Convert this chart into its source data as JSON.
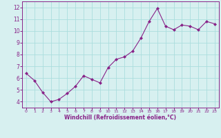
{
  "x": [
    0,
    1,
    2,
    3,
    4,
    5,
    6,
    7,
    8,
    9,
    10,
    11,
    12,
    13,
    14,
    15,
    16,
    17,
    18,
    19,
    20,
    21,
    22,
    23
  ],
  "y": [
    6.4,
    5.8,
    4.8,
    4.0,
    4.2,
    4.7,
    5.3,
    6.2,
    5.9,
    5.6,
    6.9,
    7.6,
    7.8,
    8.3,
    9.4,
    10.8,
    11.9,
    10.4,
    10.1,
    10.5,
    10.4,
    10.1,
    10.8,
    10.6
  ],
  "line_color": "#882288",
  "marker": "D",
  "marker_size": 2.0,
  "bg_color": "#d7f0f0",
  "grid_color": "#aadddd",
  "xlabel": "Windchill (Refroidissement éolien,°C)",
  "xlabel_color": "#882288",
  "tick_color": "#882288",
  "axis_color": "#882288",
  "ylim": [
    3.5,
    12.5
  ],
  "xlim": [
    -0.5,
    23.5
  ],
  "yticks": [
    4,
    5,
    6,
    7,
    8,
    9,
    10,
    11,
    12
  ],
  "xticks": [
    0,
    1,
    2,
    3,
    4,
    5,
    6,
    7,
    8,
    9,
    10,
    11,
    12,
    13,
    14,
    15,
    16,
    17,
    18,
    19,
    20,
    21,
    22,
    23
  ],
  "xtick_fontsize": 4.5,
  "ytick_fontsize": 5.5,
  "xlabel_fontsize": 5.5
}
